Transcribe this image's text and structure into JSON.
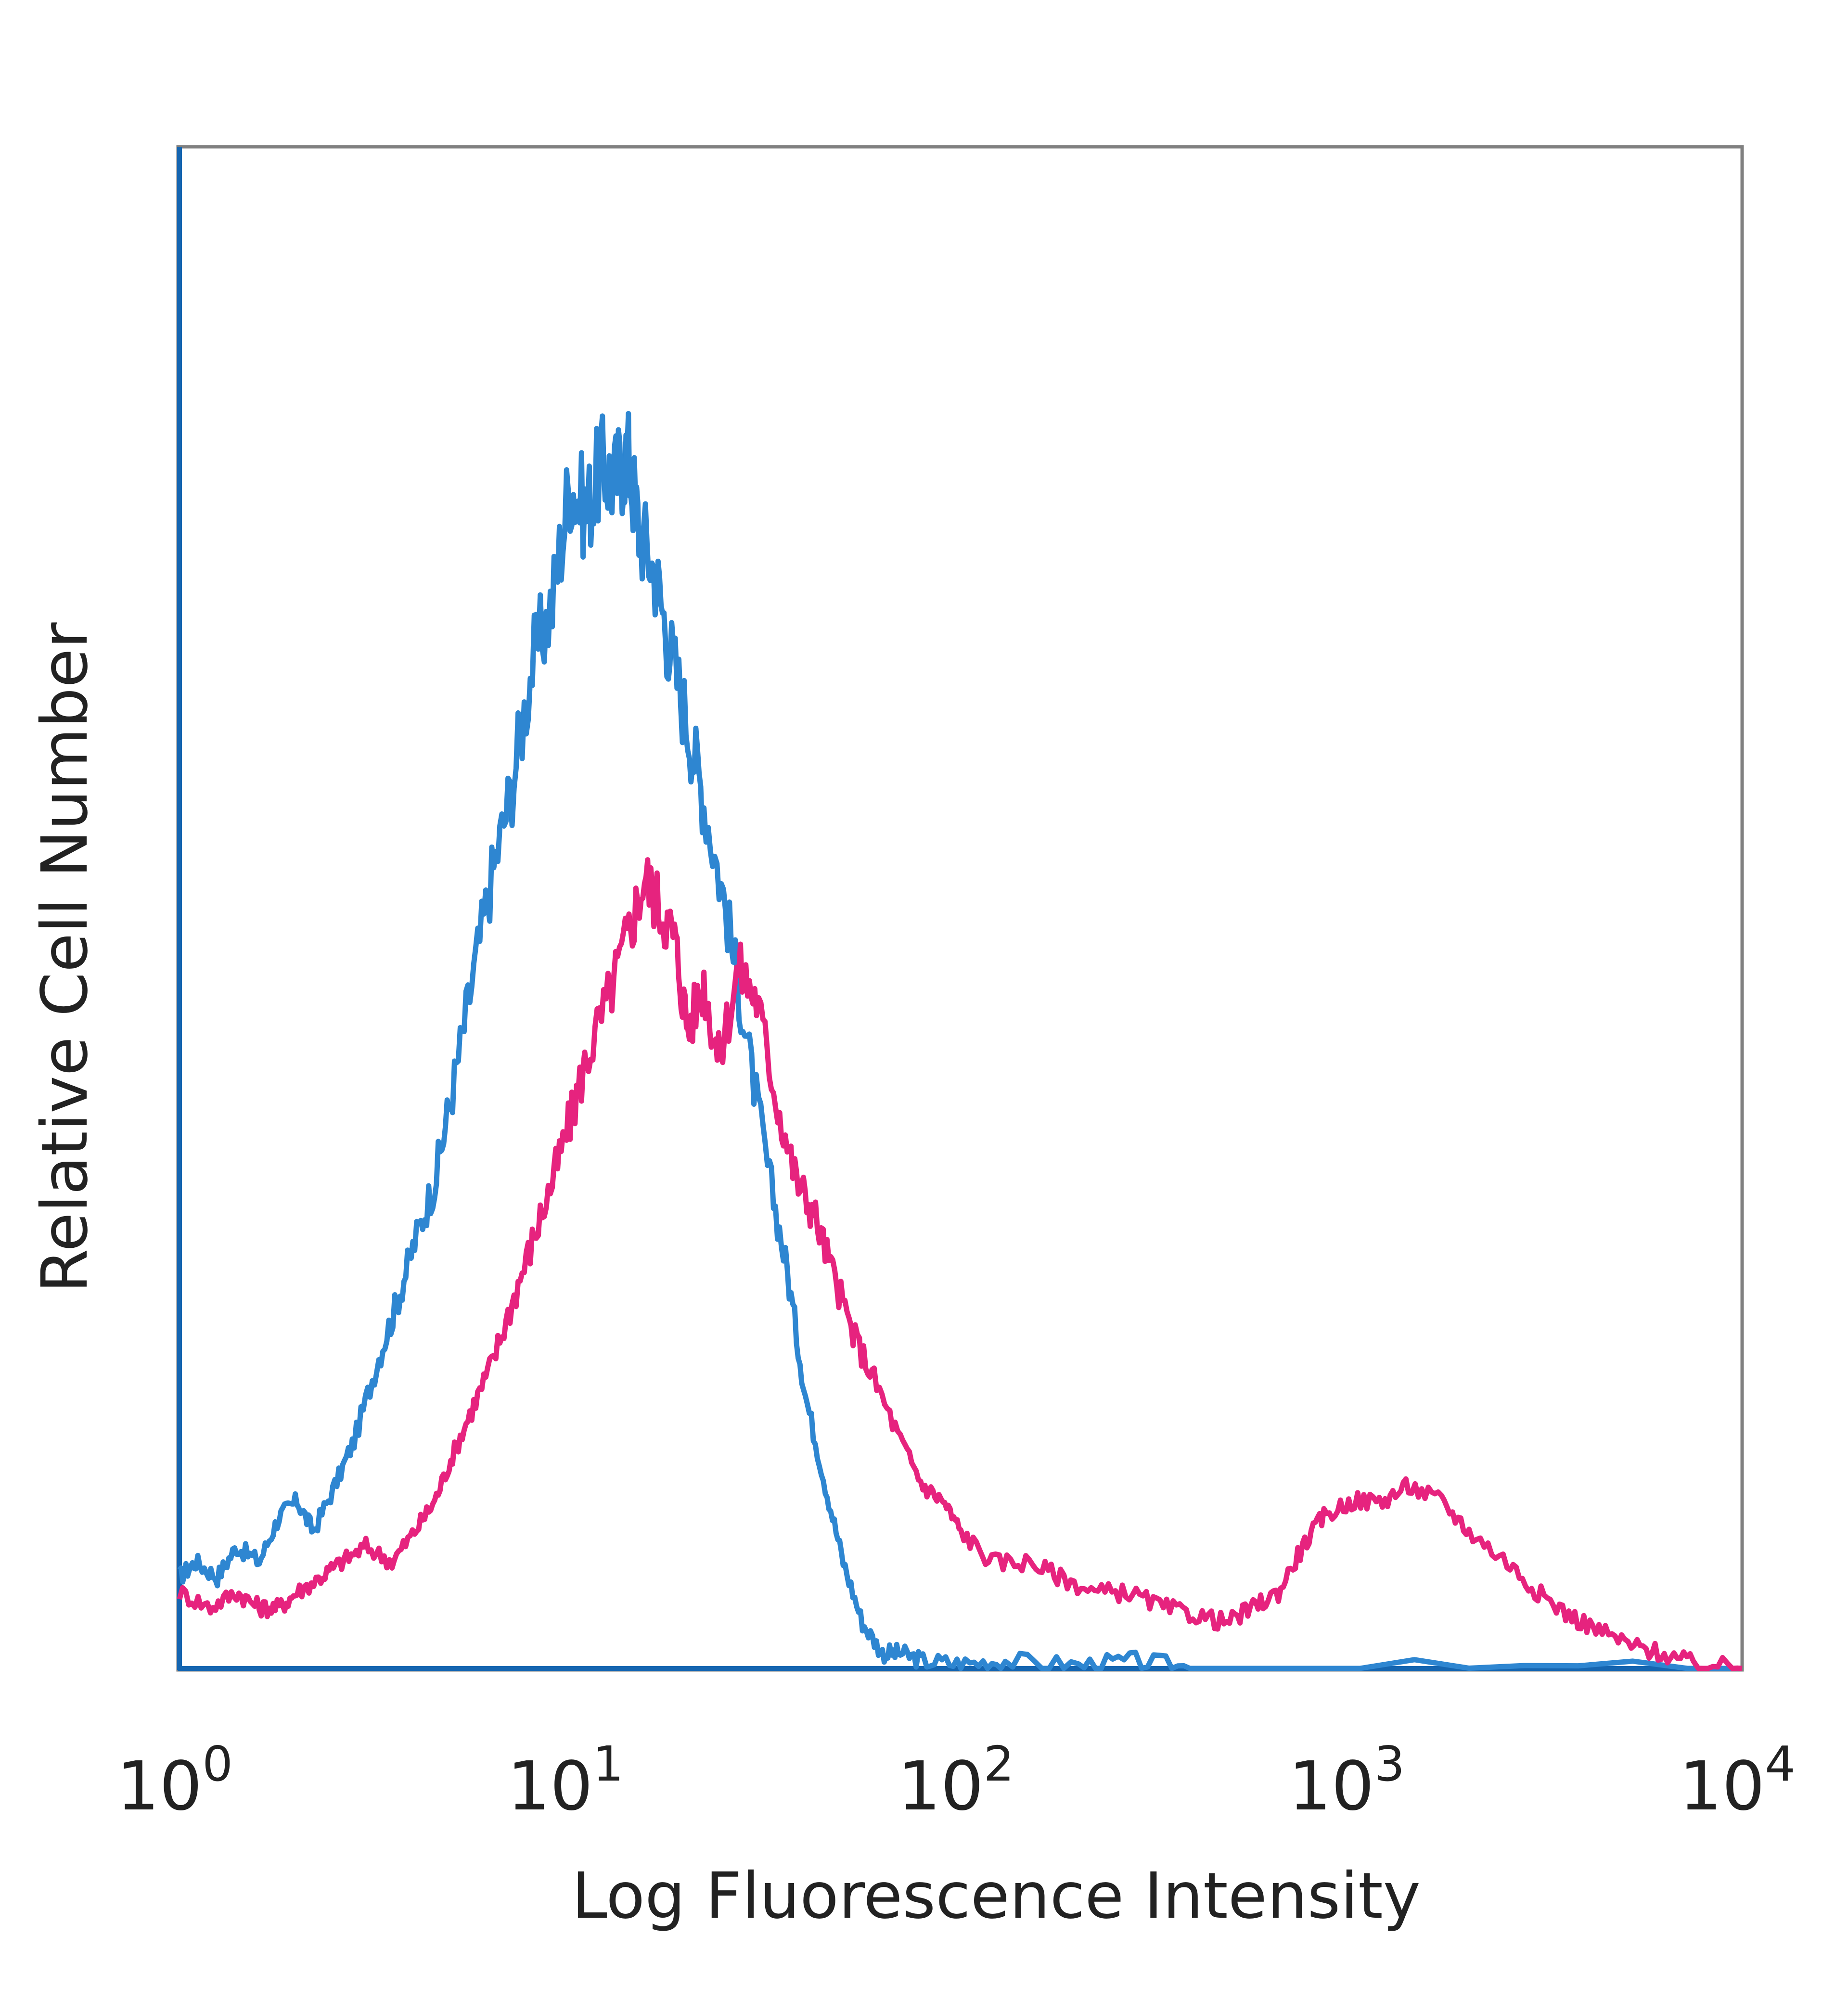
{
  "chart_data": {
    "type": "line",
    "title": "",
    "xlabel": "Log Fluorescence Intensity",
    "ylabel": "Relative Cell Number",
    "x_scale": "log",
    "xlim": [
      1,
      10000
    ],
    "ylim": [
      0,
      100
    ],
    "grid": false,
    "legend": "none",
    "x_ticks": [
      {
        "base": "10",
        "exp": "0",
        "value": 1
      },
      {
        "base": "10",
        "exp": "1",
        "value": 10
      },
      {
        "base": "10",
        "exp": "2",
        "value": 100
      },
      {
        "base": "10",
        "exp": "3",
        "value": 1000
      },
      {
        "base": "10",
        "exp": "4",
        "value": 10000
      }
    ],
    "series": [
      {
        "color": "#2e86d1",
        "points": [
          [
            1.0,
            6
          ],
          [
            1.1,
            7
          ],
          [
            1.25,
            6
          ],
          [
            1.4,
            8
          ],
          [
            1.6,
            7
          ],
          [
            1.8,
            10
          ],
          [
            2.0,
            11
          ],
          [
            2.2,
            9
          ],
          [
            2.5,
            12
          ],
          [
            2.8,
            15
          ],
          [
            3.2,
            20
          ],
          [
            3.6,
            24
          ],
          [
            4.0,
            28
          ],
          [
            4.5,
            32
          ],
          [
            5.0,
            38
          ],
          [
            5.6,
            45
          ],
          [
            6.3,
            52
          ],
          [
            7.1,
            58
          ],
          [
            8.0,
            66
          ],
          [
            9.0,
            70
          ],
          [
            10.0,
            78
          ],
          [
            11.0,
            76
          ],
          [
            12.0,
            79
          ],
          [
            13.0,
            78
          ],
          [
            14.0,
            80
          ],
          [
            15.0,
            75
          ],
          [
            16.5,
            72
          ],
          [
            18.0,
            67
          ],
          [
            20.0,
            62
          ],
          [
            22.0,
            57
          ],
          [
            25.0,
            50
          ],
          [
            28.0,
            42
          ],
          [
            32.0,
            33
          ],
          [
            36.0,
            26
          ],
          [
            40.0,
            18
          ],
          [
            45.0,
            12
          ],
          [
            50.0,
            7
          ],
          [
            56.0,
            3
          ],
          [
            63.0,
            1
          ],
          [
            70.0,
            1
          ],
          [
            80.0,
            0.5
          ],
          [
            100.0,
            0.3
          ],
          [
            130.0,
            0.5
          ],
          [
            200.0,
            0.2
          ],
          [
            280.0,
            0.5
          ],
          [
            400.0,
            0
          ],
          [
            10000.0,
            0
          ]
        ]
      },
      {
        "color": "#e6237e",
        "points": [
          [
            1.0,
            5
          ],
          [
            1.2,
            4
          ],
          [
            1.4,
            5
          ],
          [
            1.6,
            4
          ],
          [
            1.8,
            4
          ],
          [
            2.0,
            5
          ],
          [
            2.3,
            6
          ],
          [
            2.6,
            7
          ],
          [
            3.0,
            8
          ],
          [
            3.5,
            7
          ],
          [
            4.0,
            9
          ],
          [
            4.5,
            11
          ],
          [
            5.0,
            14
          ],
          [
            5.6,
            17
          ],
          [
            6.3,
            20
          ],
          [
            7.1,
            24
          ],
          [
            8.0,
            28
          ],
          [
            9.0,
            32
          ],
          [
            10.0,
            36
          ],
          [
            11.0,
            40
          ],
          [
            12.5,
            44
          ],
          [
            14.0,
            48
          ],
          [
            15.5,
            52
          ],
          [
            17.0,
            50
          ],
          [
            18.5,
            48
          ],
          [
            20.0,
            42
          ],
          [
            22.0,
            45
          ],
          [
            24.0,
            40
          ],
          [
            27.0,
            46
          ],
          [
            30.0,
            44
          ],
          [
            34.0,
            37
          ],
          [
            38.0,
            32
          ],
          [
            42.0,
            30
          ],
          [
            47.0,
            26
          ],
          [
            53.0,
            22
          ],
          [
            60.0,
            19
          ],
          [
            70.0,
            15
          ],
          [
            80.0,
            12
          ],
          [
            90.0,
            11
          ],
          [
            100.0,
            9
          ],
          [
            120.0,
            7
          ],
          [
            150.0,
            7
          ],
          [
            180.0,
            6
          ],
          [
            220.0,
            5
          ],
          [
            270.0,
            5
          ],
          [
            330.0,
            4
          ],
          [
            400.0,
            3.5
          ],
          [
            480.0,
            3
          ],
          [
            560.0,
            4
          ],
          [
            650.0,
            5
          ],
          [
            750.0,
            8
          ],
          [
            850.0,
            10
          ],
          [
            1000.0,
            11
          ],
          [
            1200.0,
            11
          ],
          [
            1400.0,
            12
          ],
          [
            1700.0,
            11
          ],
          [
            2000.0,
            9
          ],
          [
            2500.0,
            7
          ],
          [
            3000.0,
            5
          ],
          [
            3600.0,
            3.5
          ],
          [
            4300.0,
            2.5
          ],
          [
            5200.0,
            1.5
          ],
          [
            6200.0,
            1
          ],
          [
            7500.0,
            0.3
          ],
          [
            10000.0,
            0
          ]
        ]
      }
    ]
  }
}
